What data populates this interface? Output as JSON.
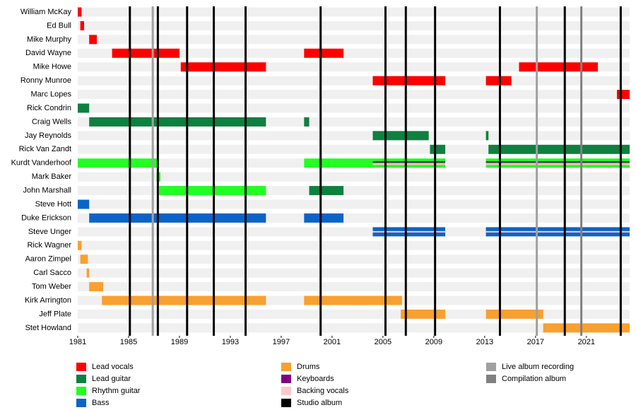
{
  "chart_data": {
    "type": "timeline",
    "xlim": [
      1981,
      2024.4
    ],
    "xticks": [
      1981,
      1985,
      1989,
      1993,
      1997,
      2001,
      2005,
      2009,
      2013,
      2017,
      2021
    ],
    "legend": [
      {
        "name": "Lead vocals",
        "color": "#ff0000",
        "kind": "bar"
      },
      {
        "name": "Lead guitar",
        "color": "#0e8040",
        "kind": "bar"
      },
      {
        "name": "Rhythm guitar",
        "color": "#22ff22",
        "kind": "bar"
      },
      {
        "name": "Bass",
        "color": "#0a64c8",
        "kind": "bar"
      },
      {
        "name": "Drums",
        "color": "#f8a030",
        "kind": "bar"
      },
      {
        "name": "Keyboards",
        "color": "#800080",
        "kind": "stripe"
      },
      {
        "name": "Backing vocals",
        "color": "#ffc8c8",
        "kind": "stripe"
      },
      {
        "name": "Studio album",
        "color": "#000000",
        "kind": "event"
      },
      {
        "name": "Live album recording",
        "color": "#a0a0a0",
        "kind": "event"
      },
      {
        "name": "Compilation album",
        "color": "#808080",
        "kind": "event"
      }
    ],
    "members": [
      {
        "name": "William McKay",
        "periods": [
          {
            "start": 1981.0,
            "end": 1981.3,
            "role": "Lead vocals"
          }
        ]
      },
      {
        "name": "Ed Bull",
        "periods": [
          {
            "start": 1981.2,
            "end": 1981.5,
            "role": "Lead vocals"
          }
        ]
      },
      {
        "name": "Mike Murphy",
        "periods": [
          {
            "start": 1981.9,
            "end": 1982.5,
            "role": "Lead vocals"
          }
        ]
      },
      {
        "name": "David Wayne",
        "periods": [
          {
            "start": 1983.7,
            "end": 1989.0,
            "role": "Lead vocals"
          },
          {
            "start": 1998.8,
            "end": 2001.9,
            "role": "Lead vocals"
          }
        ]
      },
      {
        "name": "Mike Howe",
        "periods": [
          {
            "start": 1989.1,
            "end": 1995.8,
            "role": "Lead vocals"
          },
          {
            "start": 2015.7,
            "end": 2021.9,
            "role": "Lead vocals"
          }
        ]
      },
      {
        "name": "Ronny Munroe",
        "periods": [
          {
            "start": 2004.2,
            "end": 2009.9,
            "role": "Lead vocals"
          },
          {
            "start": 2013.1,
            "end": 2015.1,
            "role": "Lead vocals"
          }
        ]
      },
      {
        "name": "Marc Lopes",
        "periods": [
          {
            "start": 2023.4,
            "end": 2024.4,
            "role": "Lead vocals"
          }
        ]
      },
      {
        "name": "Rick Condrin",
        "periods": [
          {
            "start": 1981.0,
            "end": 1981.9,
            "role": "Lead guitar"
          }
        ]
      },
      {
        "name": "Craig Wells",
        "periods": [
          {
            "start": 1981.9,
            "end": 1995.8,
            "role": "Lead guitar"
          },
          {
            "start": 1998.8,
            "end": 1999.2,
            "role": "Lead guitar"
          }
        ]
      },
      {
        "name": "Jay Reynolds",
        "periods": [
          {
            "start": 2004.2,
            "end": 2008.6,
            "role": "Lead guitar"
          },
          {
            "start": 2013.1,
            "end": 2013.3,
            "role": "Lead guitar"
          }
        ]
      },
      {
        "name": "Rick Van Zandt",
        "periods": [
          {
            "start": 2008.7,
            "end": 2009.9,
            "role": "Lead guitar"
          },
          {
            "start": 2013.3,
            "end": 2024.4,
            "role": "Lead guitar"
          }
        ]
      },
      {
        "name": "Kurdt Vanderhoof",
        "periods": [
          {
            "start": 1981.0,
            "end": 1987.3,
            "role": "Rhythm guitar"
          },
          {
            "start": 1998.8,
            "end": 2009.9,
            "role": "Rhythm guitar"
          },
          {
            "start": 2013.1,
            "end": 2024.4,
            "role": "Rhythm guitar"
          },
          {
            "start": 2004.2,
            "end": 2009.9,
            "role": "Keyboards"
          },
          {
            "start": 2013.1,
            "end": 2024.4,
            "role": "Keyboards"
          },
          {
            "start": 2004.2,
            "end": 2009.9,
            "role": "Backing vocals"
          },
          {
            "start": 2013.1,
            "end": 2024.4,
            "role": "Backing vocals"
          }
        ]
      },
      {
        "name": "Mark Baker",
        "periods": [
          {
            "start": 1987.2,
            "end": 1987.5,
            "role": "Rhythm guitar"
          }
        ]
      },
      {
        "name": "John Marshall",
        "periods": [
          {
            "start": 1987.4,
            "end": 1995.8,
            "role": "Rhythm guitar"
          },
          {
            "start": 1999.2,
            "end": 2001.9,
            "role": "Lead guitar"
          }
        ]
      },
      {
        "name": "Steve Hott",
        "periods": [
          {
            "start": 1981.0,
            "end": 1981.9,
            "role": "Bass"
          }
        ]
      },
      {
        "name": "Duke Erickson",
        "periods": [
          {
            "start": 1981.9,
            "end": 1995.8,
            "role": "Bass"
          },
          {
            "start": 1998.8,
            "end": 2001.9,
            "role": "Bass"
          }
        ]
      },
      {
        "name": "Steve Unger",
        "periods": [
          {
            "start": 2004.2,
            "end": 2009.9,
            "role": "Bass"
          },
          {
            "start": 2013.1,
            "end": 2024.4,
            "role": "Bass"
          },
          {
            "start": 2004.2,
            "end": 2009.9,
            "role": "Backing vocals"
          },
          {
            "start": 2013.1,
            "end": 2024.4,
            "role": "Backing vocals"
          }
        ]
      },
      {
        "name": "Rick Wagner",
        "periods": [
          {
            "start": 1981.0,
            "end": 1981.3,
            "role": "Drums"
          }
        ]
      },
      {
        "name": "Aaron Zimpel",
        "periods": [
          {
            "start": 1981.2,
            "end": 1981.8,
            "role": "Drums"
          }
        ]
      },
      {
        "name": "Carl Sacco",
        "periods": [
          {
            "start": 1981.7,
            "end": 1981.9,
            "role": "Drums"
          }
        ]
      },
      {
        "name": "Tom Weber",
        "periods": [
          {
            "start": 1981.9,
            "end": 1983.0,
            "role": "Drums"
          }
        ]
      },
      {
        "name": "Kirk Arrington",
        "periods": [
          {
            "start": 1982.9,
            "end": 1995.8,
            "role": "Drums"
          },
          {
            "start": 1998.8,
            "end": 2006.5,
            "role": "Drums"
          }
        ]
      },
      {
        "name": "Jeff Plate",
        "periods": [
          {
            "start": 2006.4,
            "end": 2009.9,
            "role": "Drums"
          },
          {
            "start": 2013.1,
            "end": 2017.6,
            "role": "Drums"
          }
        ]
      },
      {
        "name": "Stet Howland",
        "periods": [
          {
            "start": 2017.6,
            "end": 2024.4,
            "role": "Drums"
          }
        ]
      }
    ],
    "events": [
      {
        "x": 1985.1,
        "type": "Studio album"
      },
      {
        "x": 1987.3,
        "type": "Studio album"
      },
      {
        "x": 1989.6,
        "type": "Studio album"
      },
      {
        "x": 1991.7,
        "type": "Studio album"
      },
      {
        "x": 1994.2,
        "type": "Studio album"
      },
      {
        "x": 2000.1,
        "type": "Studio album"
      },
      {
        "x": 2005.2,
        "type": "Studio album"
      },
      {
        "x": 2006.8,
        "type": "Studio album"
      },
      {
        "x": 2009.1,
        "type": "Studio album"
      },
      {
        "x": 2014.2,
        "type": "Studio album"
      },
      {
        "x": 2019.3,
        "type": "Studio album"
      },
      {
        "x": 2023.7,
        "type": "Studio album"
      },
      {
        "x": 1986.9,
        "type": "Live album recording"
      },
      {
        "x": 2017.1,
        "type": "Live album recording"
      },
      {
        "x": 2020.6,
        "type": "Compilation album"
      }
    ]
  }
}
